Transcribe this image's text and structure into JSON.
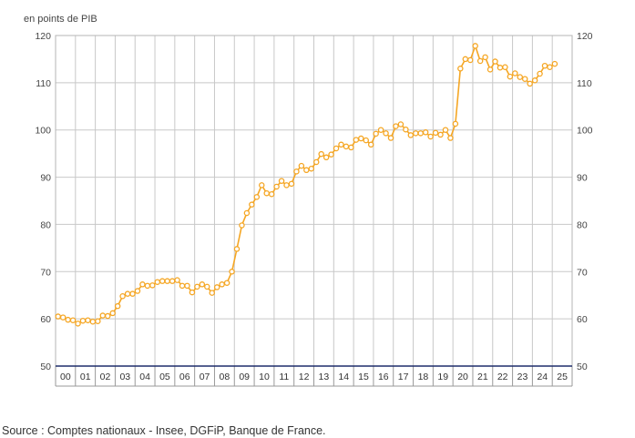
{
  "chart_data": {
    "type": "line",
    "unit_label": "en points de PIB",
    "ylim": [
      50,
      120
    ],
    "yticks": [
      50,
      60,
      70,
      80,
      90,
      100,
      110,
      120
    ],
    "xlim": [
      2000,
      2026
    ],
    "year_labels": [
      "00",
      "01",
      "02",
      "03",
      "04",
      "05",
      "06",
      "07",
      "08",
      "09",
      "10",
      "11",
      "12",
      "13",
      "14",
      "15",
      "16",
      "17",
      "18",
      "19",
      "20",
      "21",
      "22",
      "23",
      "24",
      "25"
    ],
    "grid": true,
    "dual_y_axis": true,
    "colors": {
      "line": "#F5A623",
      "grid": "#c8c8c8",
      "baseline": "#1f2d6b"
    },
    "series": [
      {
        "frequency": "quarterly",
        "start": "2000-Q1",
        "values": [
          60.5,
          60.3,
          59.8,
          59.7,
          59.0,
          59.6,
          59.7,
          59.4,
          59.5,
          60.7,
          60.6,
          61.2,
          62.7,
          64.8,
          65.3,
          65.3,
          65.9,
          67.3,
          67.0,
          67.1,
          67.8,
          68.0,
          68.0,
          68.0,
          68.2,
          67.0,
          67.0,
          65.6,
          66.8,
          67.3,
          66.8,
          65.5,
          66.7,
          67.3,
          67.6,
          70.0,
          74.8,
          79.8,
          82.4,
          84.2,
          85.8,
          88.3,
          86.6,
          86.4,
          88.0,
          89.2,
          88.3,
          88.6,
          91.2,
          92.4,
          91.5,
          91.8,
          93.2,
          94.9,
          94.2,
          94.8,
          96.1,
          96.9,
          96.5,
          96.3,
          97.9,
          98.2,
          97.8,
          96.9,
          99.2,
          100.0,
          99.3,
          98.3,
          100.8,
          101.2,
          100.1,
          98.9,
          99.3,
          99.3,
          99.5,
          98.6,
          99.4,
          99.0,
          100.0,
          98.3,
          101.3,
          113.0,
          115.0,
          114.8,
          117.8,
          114.6,
          115.4,
          112.8,
          114.5,
          113.2,
          113.3,
          111.3,
          112.0,
          111.2,
          110.8,
          109.8,
          110.5,
          111.9,
          113.6,
          113.3,
          114.0
        ]
      }
    ]
  },
  "source": "Source : Comptes nationaux - Insee, DGFiP, Banque de France."
}
